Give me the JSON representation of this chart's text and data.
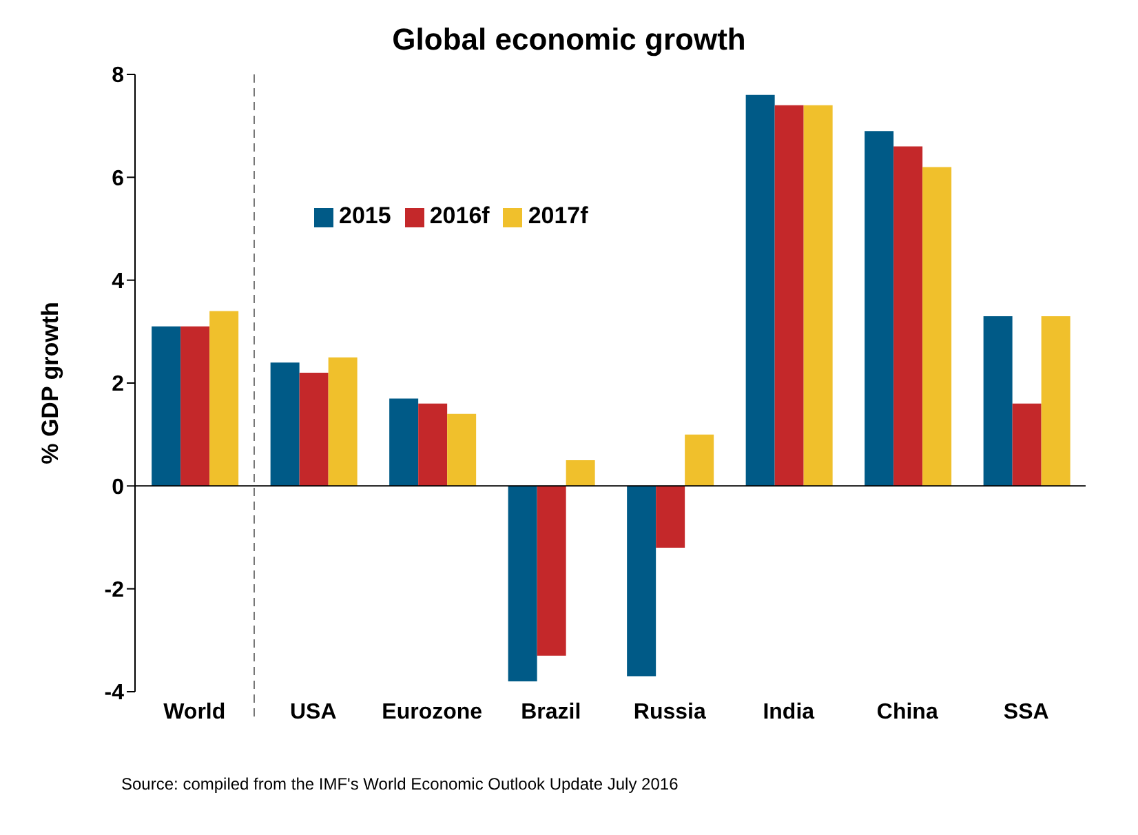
{
  "chart_data": {
    "type": "bar",
    "title": "Global economic growth",
    "ylabel": "% GDP growth",
    "categories": [
      "World",
      "USA",
      "Eurozone",
      "Brazil",
      "Russia",
      "India",
      "China",
      "SSA"
    ],
    "series": [
      {
        "name": "2015",
        "color": "#005a87",
        "values": [
          3.1,
          2.4,
          1.7,
          -3.8,
          -3.7,
          7.6,
          6.9,
          3.3
        ]
      },
      {
        "name": "2016f",
        "color": "#c4282a",
        "values": [
          3.1,
          2.2,
          1.6,
          -3.3,
          -1.2,
          7.4,
          6.6,
          1.6
        ]
      },
      {
        "name": "2017f",
        "color": "#f0c02c",
        "values": [
          3.4,
          2.5,
          1.4,
          0.5,
          1.0,
          7.4,
          6.2,
          3.3
        ]
      }
    ],
    "ylim": [
      -4,
      8
    ],
    "yticks": [
      -4,
      -2,
      0,
      2,
      4,
      6,
      8
    ],
    "legend": "top left",
    "annotations": [
      "Source: compiled from the IMF's World Economic Outlook Update July 2016"
    ]
  }
}
